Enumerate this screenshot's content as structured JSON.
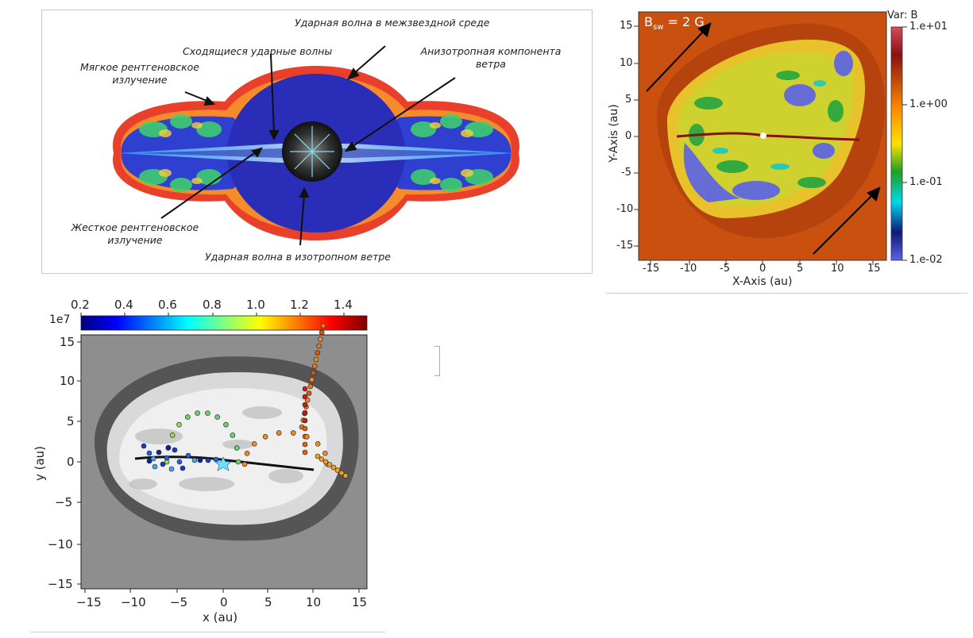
{
  "panel1": {
    "labels": {
      "ism_shock": "Ударная волна в межзвездной среде",
      "converging": "Сходящиеся ударные волны",
      "aniso_1": "Анизотропная компонента",
      "aniso_2": "ветра",
      "soft_1": "Мягкое рентгеновское",
      "soft_2": "излучение",
      "hard_1": "Жесткое рентгеновское",
      "hard_2": "излучение",
      "iso_shock": "Ударная волна в изотропном ветре"
    }
  },
  "panel2": {
    "var_label": "Var: B",
    "bsw_label_main": "B",
    "bsw_label_sub": "sw",
    "bsw_label_value": "= 2 G",
    "x_axis_label": "X-Axis (au)",
    "y_axis_label": "Y-Axis (au)",
    "x_ticks": [
      "-15",
      "-10",
      "-5",
      "0",
      "5",
      "10",
      "15"
    ],
    "y_ticks": [
      "15",
      "10",
      "5",
      "0",
      "-5",
      "-10",
      "-15"
    ],
    "colorbar_ticks": [
      "1.e+01",
      "1.e+00",
      "1.e-01",
      "1.e-02"
    ]
  },
  "panel3": {
    "colorbar_ticks": [
      "0.2",
      "0.4",
      "0.6",
      "0.8",
      "1.0",
      "1.2",
      "1.4"
    ],
    "colorbar_exponent": "1e7",
    "x_axis_label": "x (au)",
    "y_axis_label": "y (au)",
    "x_ticks": [
      "−15",
      "−10",
      "−5",
      "0",
      "5",
      "10",
      "15"
    ],
    "y_ticks": [
      "15",
      "10",
      "5",
      "0",
      "−5",
      "−10",
      "−15"
    ]
  }
}
